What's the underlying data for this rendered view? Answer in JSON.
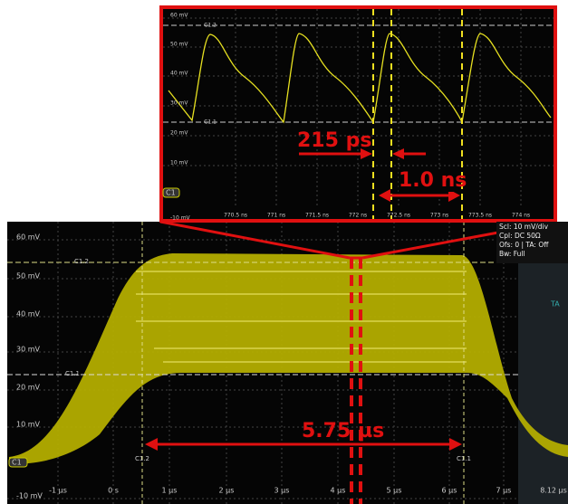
{
  "main": {
    "y_labels": [
      "60 mV",
      "50 mV",
      "40 mV",
      "30 mV",
      "20 mV",
      "10 mV",
      "-10 mV"
    ],
    "x_labels": [
      "-1 µs",
      "0 s",
      "1 µs",
      "2 µs",
      "3 µs",
      "4 µs",
      "5 µs",
      "6 µs",
      "7 µs",
      "8.12 µs"
    ],
    "cursor_labels": [
      "C1.2",
      "C1.1"
    ],
    "cursor_bottom_labels": [
      "C1.2",
      "C1.1"
    ],
    "channel": "C1",
    "annotation": "5.75 µs",
    "side_tab": "TA"
  },
  "zoom": {
    "y_labels": [
      "60 mV",
      "50 mV",
      "40 mV",
      "30 mV",
      "20 mV",
      "10 mV",
      "-10 mV"
    ],
    "x_labels": [
      "770.5 ns",
      "771 ns",
      "771.5 ns",
      "772 ns",
      "772.5 ns",
      "773 ns",
      "773.5 ns",
      "774 ns"
    ],
    "cursor_labels": [
      "C1.2",
      "C1.1"
    ],
    "channel": "C1",
    "annotations": [
      "215 ps",
      "1.0 ns"
    ]
  },
  "info": [
    "Scl: 10 mV/div",
    "Cpl: DC 50Ω",
    "Ofs: 0 | TA: Off",
    "Bw: Full"
  ]
}
